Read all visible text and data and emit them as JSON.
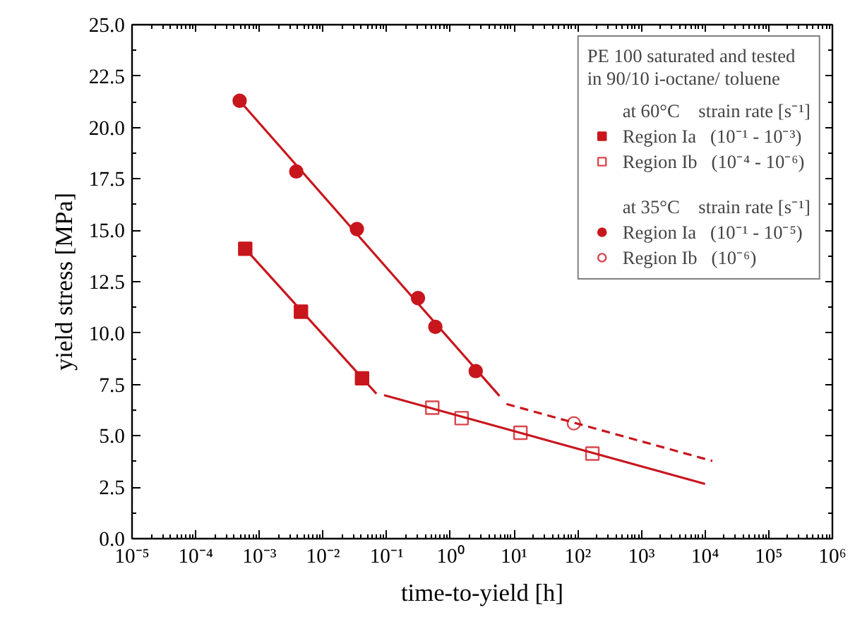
{
  "chart_data": {
    "type": "scatter",
    "xlabel": "time-to-yield [h]",
    "ylabel": "yield stress [MPa]",
    "legend_title": "PE 100 saturated and tested in 90/10 i-octane/ toluene",
    "annotations": [
      "at 60°C    strain rate [s⁻¹]",
      "at 35°C    strain rate [s⁻¹]"
    ],
    "series": [
      {
        "name": "Region Ia   (10⁻¹ - 10⁻³)",
        "color": "#c8161d",
        "marker": "square",
        "x": [
          0.0006,
          0.0045,
          0.041
        ],
        "values": [
          14.1,
          11.04,
          7.8
        ]
      },
      {
        "name": "Region Ib   (10⁻⁴ - 10⁻⁶)",
        "color": "#d9474d",
        "marker": "square_open",
        "x": [
          0.52,
          1.5,
          12.6,
          170
        ],
        "values": [
          6.37,
          5.86,
          5.15,
          4.14
        ]
      },
      {
        "name": "Region Ia   (10⁻¹ - 10⁻⁵)",
        "color": "#c8161d",
        "marker": "circle",
        "x": [
          0.00049,
          0.0038,
          0.034,
          0.31,
          0.58,
          2.5
        ],
        "values": [
          21.3,
          17.86,
          15.06,
          11.7,
          10.3,
          8.15
        ]
      },
      {
        "name": "Region Ib   (10⁻⁶)",
        "color": "#d9474d",
        "marker": "circle_open",
        "x": [
          87
        ],
        "values": [
          5.61
        ]
      },
      {
        "type": "line",
        "color": "#c8161d",
        "line_style": "solid",
        "x": [
          0.0006,
          0.069
        ],
        "values": [
          14.1,
          7.05
        ]
      },
      {
        "type": "line",
        "color": "#c8161d",
        "line_style": "solid",
        "x": [
          0.091,
          10000
        ],
        "values": [
          6.98,
          2.66
        ]
      },
      {
        "type": "line",
        "color": "#c8161d",
        "line_style": "solid",
        "x": [
          0.00049,
          5.9
        ],
        "values": [
          21.3,
          6.94
        ]
      },
      {
        "type": "line",
        "color": "#c8161d",
        "line_style": "dashed",
        "x": [
          7.6,
          13000
        ],
        "values": [
          6.55,
          3.78
        ]
      }
    ],
    "log": "x",
    "grid": false,
    "legend": "top right",
    "xlim": [
      1e-05,
      1000000
    ],
    "ylim": [
      0,
      25
    ],
    "xticks": [
      {
        "value": 1e-05,
        "label": "10⁻⁵"
      },
      {
        "value": 0.0001,
        "label": "10⁻⁴"
      },
      {
        "value": 0.001,
        "label": "10⁻³"
      },
      {
        "value": 0.01,
        "label": "10⁻²"
      },
      {
        "value": 0.1,
        "label": "10⁻¹"
      },
      {
        "value": 1,
        "label": "10⁰"
      },
      {
        "value": 10,
        "label": "10¹"
      },
      {
        "value": 100,
        "label": "10²"
      },
      {
        "value": 1000,
        "label": "10³"
      },
      {
        "value": 10000,
        "label": "10⁴"
      },
      {
        "value": 100000,
        "label": "10⁵"
      },
      {
        "value": 1000000,
        "label": "10⁶"
      }
    ],
    "yticks": [
      {
        "value": 0,
        "label": "0.0"
      },
      {
        "value": 2.5,
        "label": "2.5"
      },
      {
        "value": 5,
        "label": "5.0"
      },
      {
        "value": 7.5,
        "label": "7.5"
      },
      {
        "value": 10,
        "label": "10.0"
      },
      {
        "value": 12.5,
        "label": "12.5"
      },
      {
        "value": 15,
        "label": "15.0"
      },
      {
        "value": 17.5,
        "label": "17.5"
      },
      {
        "value": 20,
        "label": "20.0"
      },
      {
        "value": 22.5,
        "label": "22.5"
      },
      {
        "value": 25,
        "label": "25.0"
      }
    ]
  }
}
